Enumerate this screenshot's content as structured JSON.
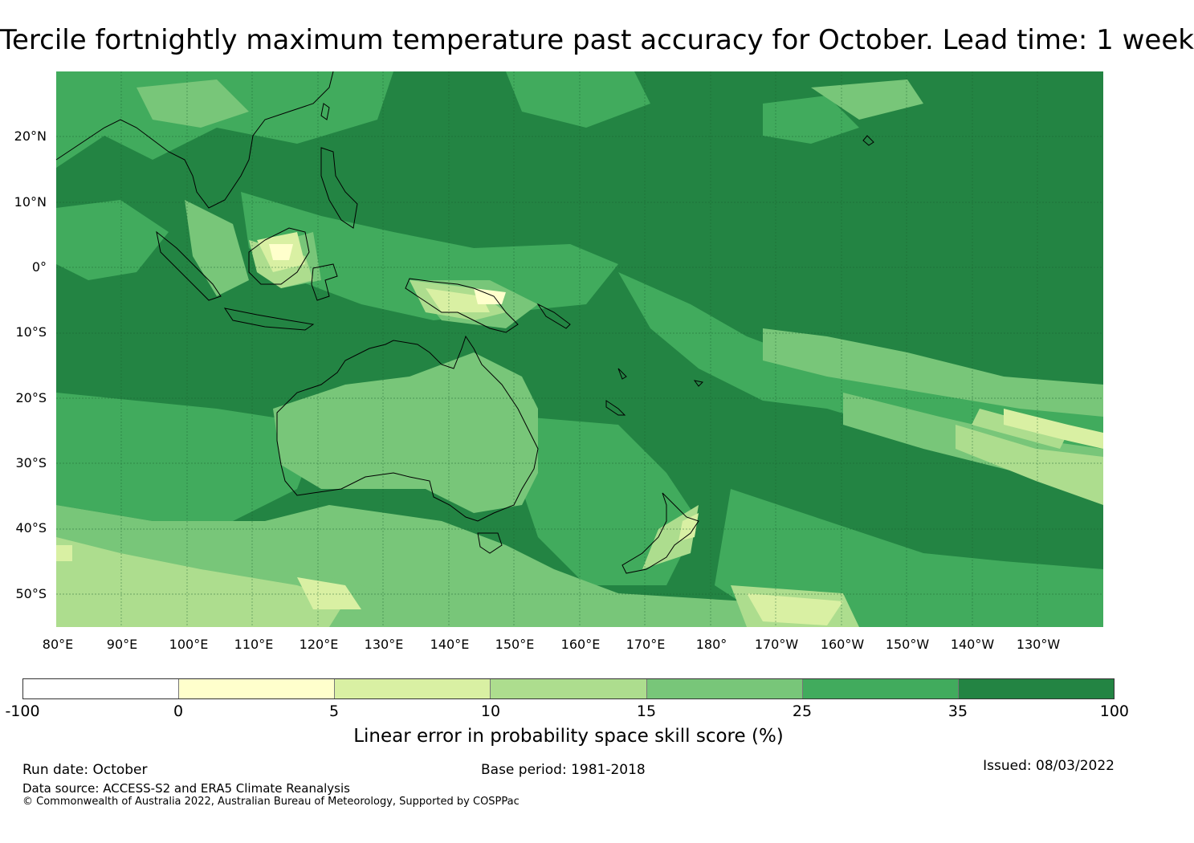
{
  "title": "Tercile fortnightly maximum temperature past accuracy for October. Lead time: 1 week",
  "map": {
    "lat_labels": [
      "20°N",
      "10°N",
      "0°",
      "10°S",
      "20°S",
      "30°S",
      "40°S",
      "50°S"
    ],
    "lon_labels": [
      "80°E",
      "90°E",
      "100°E",
      "110°E",
      "120°E",
      "130°E",
      "140°E",
      "150°E",
      "160°E",
      "170°E",
      "180°",
      "170°W",
      "160°W",
      "150°W",
      "140°W",
      "130°W"
    ],
    "extent": {
      "lon_min": 80,
      "lon_max": 240,
      "lat_min": -55,
      "lat_max": 30
    }
  },
  "colorbar": {
    "ticks": [
      "-100",
      "0",
      "5",
      "10",
      "15",
      "25",
      "35",
      "100"
    ],
    "colors": [
      "#ffffff",
      "#ffffcc",
      "#d9f0a3",
      "#addd8e",
      "#78c679",
      "#41ab5d",
      "#238443"
    ],
    "label": "Linear error in probability space skill score (%)"
  },
  "footer": {
    "run_date": "Run date: October",
    "base_period": "Base period: 1981-2018",
    "issued": "Issued: 08/03/2022",
    "data_source": "Data source: ACCESS-S2 and ERA5 Climate Reanalysis",
    "copyright": "© Commonwealth of Australia 2022, Australian Bureau of Meteorology, Supported by COSPPac"
  }
}
